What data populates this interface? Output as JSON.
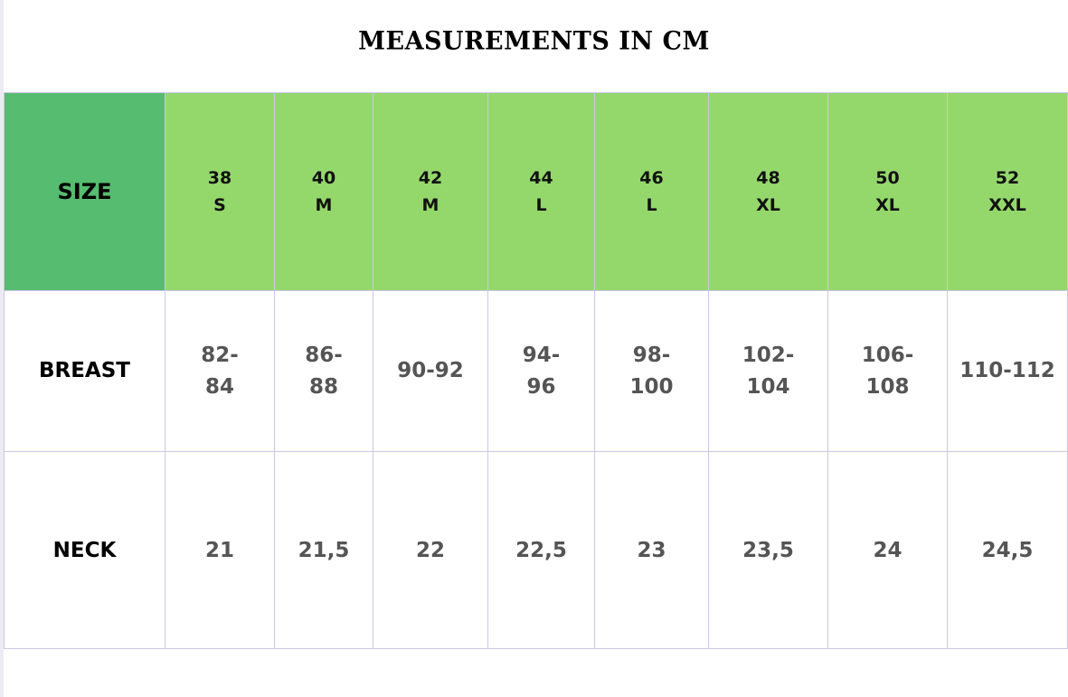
{
  "title": "MEASUREMENTS IN CM",
  "colors": {
    "size_header_bg": "#56bc6f",
    "header_bg": "#94d86b",
    "border": "#cdc6e6"
  },
  "table": {
    "header_label": "SIZE",
    "sizes": [
      {
        "number": "38",
        "letter": "S"
      },
      {
        "number": "40",
        "letter": "M"
      },
      {
        "number": "42",
        "letter": "M"
      },
      {
        "number": "44",
        "letter": "L"
      },
      {
        "number": "46",
        "letter": "L"
      },
      {
        "number": "48",
        "letter": "XL"
      },
      {
        "number": "50",
        "letter": "XL"
      },
      {
        "number": "52",
        "letter": "XXL"
      }
    ],
    "rows": [
      {
        "label": "BREAST",
        "values": [
          "82-84",
          "86-88",
          "90-92",
          "94-96",
          "98-100",
          "102-104",
          "106-108",
          "110-112"
        ]
      },
      {
        "label": "NECK",
        "values": [
          "21",
          "21,5",
          "22",
          "22,5",
          "23",
          "23,5",
          "24",
          "24,5"
        ]
      }
    ]
  }
}
